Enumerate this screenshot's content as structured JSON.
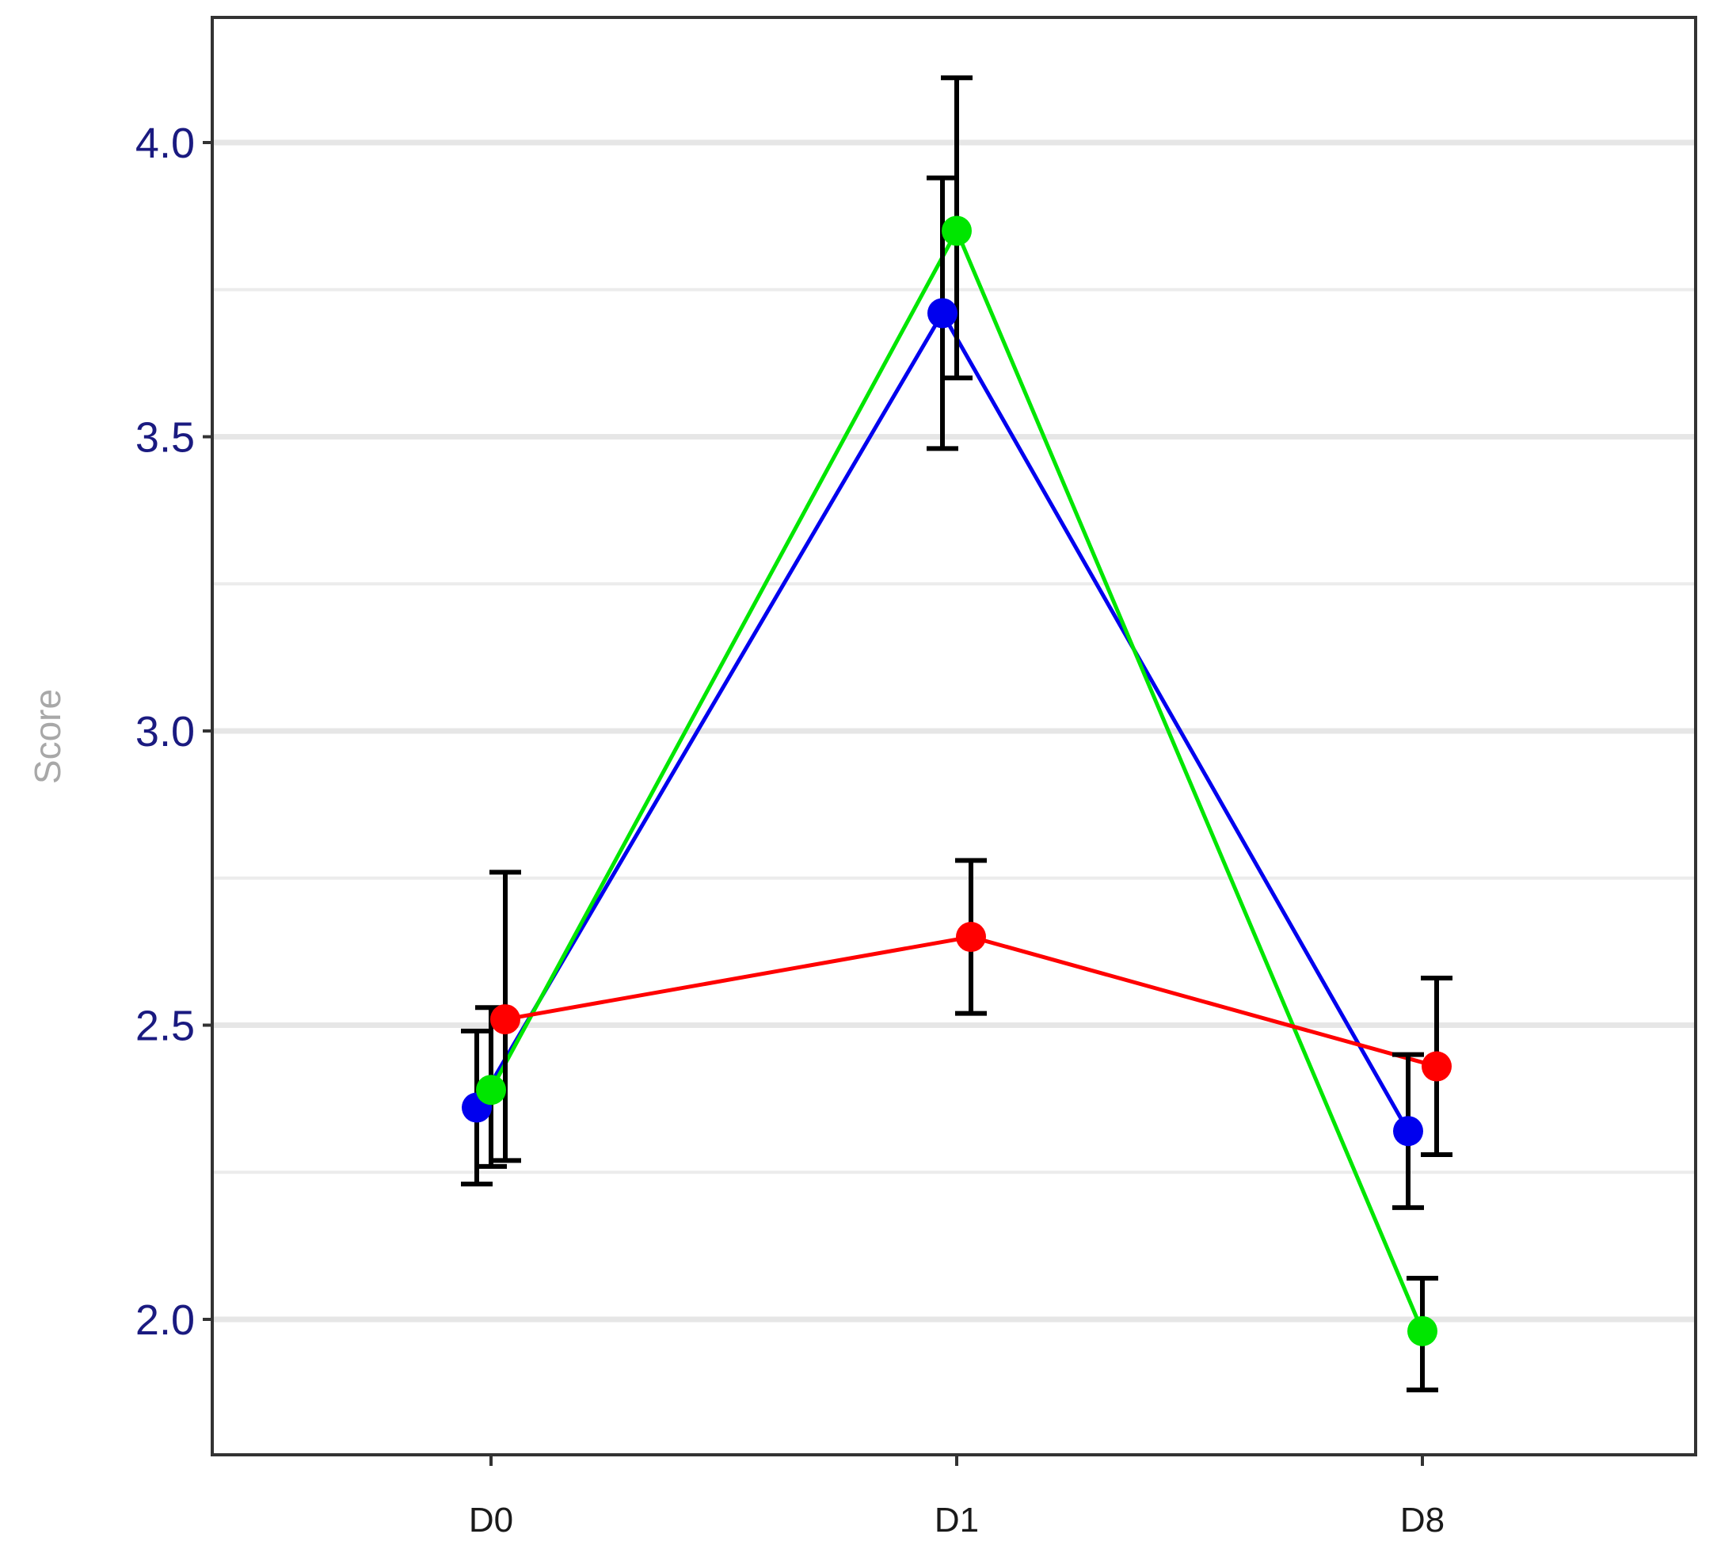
{
  "chart_data": {
    "type": "line",
    "title": "",
    "xlabel": "",
    "ylabel": "Score",
    "categories": [
      "D0",
      "D1",
      "D8"
    ],
    "ylim": [
      1.77,
      4.21
    ],
    "y_major_ticks": [
      2.0,
      2.5,
      3.0,
      3.5,
      4.0
    ],
    "y_tick_labels": [
      "2.0",
      "2.5",
      "3.0",
      "3.5",
      "4.0"
    ],
    "y_minor_gridlines": [
      2.25,
      2.75,
      3.25,
      3.75
    ],
    "grid": "horizontal",
    "legend": "none",
    "series": [
      {
        "color": "#0000ee",
        "dodge": -1,
        "values": [
          2.36,
          3.71,
          2.32
        ],
        "error_low": [
          2.23,
          3.48,
          2.19
        ],
        "error_high": [
          2.49,
          3.94,
          2.45
        ]
      },
      {
        "color": "#00e600",
        "dodge": 0,
        "values": [
          2.39,
          3.85,
          1.98
        ],
        "error_low": [
          2.26,
          3.6,
          1.88
        ],
        "error_high": [
          2.53,
          4.11,
          2.07
        ]
      },
      {
        "color": "#ff0000",
        "dodge": 1,
        "values": [
          2.51,
          2.65,
          2.43
        ],
        "error_low": [
          2.27,
          2.52,
          2.28
        ],
        "error_high": [
          2.76,
          2.78,
          2.58
        ]
      }
    ]
  }
}
